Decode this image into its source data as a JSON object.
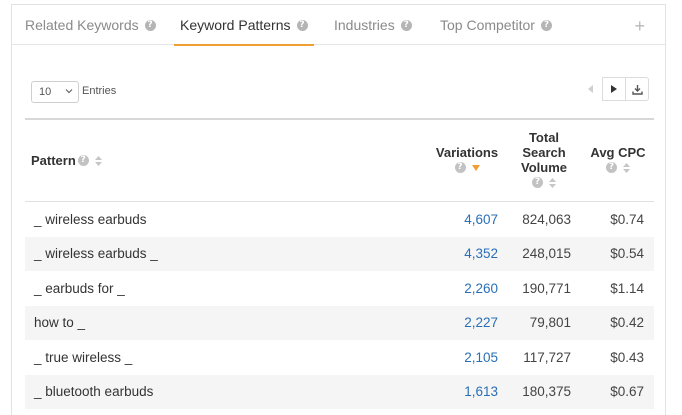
{
  "tabs": [
    {
      "label": "Related Keywords",
      "active": false
    },
    {
      "label": "Keyword Patterns",
      "active": true
    },
    {
      "label": "Industries",
      "active": false
    },
    {
      "label": "Top Competitor",
      "active": false
    }
  ],
  "entries": {
    "value": "10",
    "label": "Entries"
  },
  "columns": {
    "pattern": "Pattern",
    "variations": "Variations",
    "volume_line1": "Total",
    "volume_line2": "Search",
    "volume_line3": "Volume",
    "cpc": "Avg CPC"
  },
  "rows": [
    {
      "pattern": "_ wireless earbuds",
      "variations": "4,607",
      "volume": "824,063",
      "cpc": "$0.74"
    },
    {
      "pattern": "_ wireless earbuds _",
      "variations": "4,352",
      "volume": "248,015",
      "cpc": "$0.54"
    },
    {
      "pattern": "_ earbuds for _",
      "variations": "2,260",
      "volume": "190,771",
      "cpc": "$1.14"
    },
    {
      "pattern": "how to _",
      "variations": "2,227",
      "volume": "79,801",
      "cpc": "$0.42"
    },
    {
      "pattern": "_ true wireless _",
      "variations": "2,105",
      "volume": "117,727",
      "cpc": "$0.43"
    },
    {
      "pattern": "_ bluetooth earbuds",
      "variations": "1,613",
      "volume": "180,375",
      "cpc": "$0.67"
    }
  ],
  "colors": {
    "accent": "#f0a033",
    "link": "#2a6fb5"
  }
}
